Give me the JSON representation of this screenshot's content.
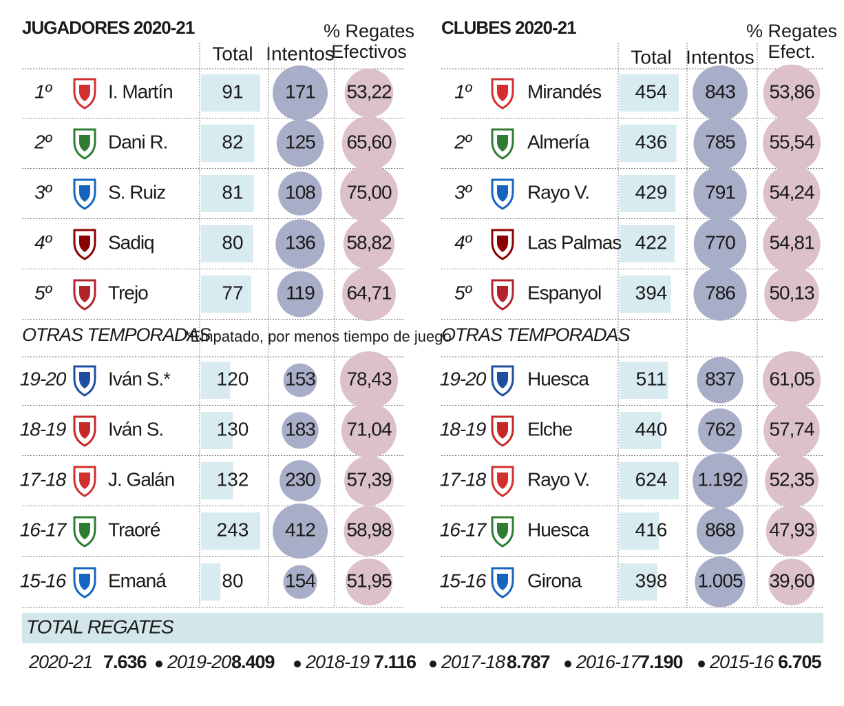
{
  "left": {
    "title": "JUGADORES 2020-21",
    "headers": [
      "Total",
      "Intentos",
      "% Regates",
      "Efectivos"
    ],
    "rows": [
      [
        "1º",
        "I. Martín",
        "91",
        "171",
        "53,22"
      ],
      [
        "2º",
        "Dani R.",
        "82",
        "125",
        "65,60"
      ],
      [
        "3º",
        "S. Ruiz",
        "81",
        "108",
        "75,00"
      ],
      [
        "4º",
        "Sadiq",
        "80",
        "136",
        "58,82"
      ],
      [
        "5º",
        "Trejo",
        "77",
        "119",
        "64,71"
      ]
    ],
    "other_title": "OTRAS TEMPORADAS",
    "note": "*Empatado, por menos tiempo de juego",
    "other_rows": [
      [
        "19-20",
        "Iván S.*",
        "120",
        "153",
        "78,43"
      ],
      [
        "18-19",
        "Iván S.",
        "130",
        "183",
        "71,04"
      ],
      [
        "17-18",
        "J. Galán",
        "132",
        "230",
        "57,39"
      ],
      [
        "16-17",
        "Traoré",
        "243",
        "412",
        "58,98"
      ],
      [
        "15-16",
        "Emaná",
        "80",
        "154",
        "51,95"
      ]
    ]
  },
  "right": {
    "title": "CLUBES 2020-21",
    "headers": [
      "Total",
      "Intentos",
      "% Regates",
      "Efect."
    ],
    "rows": [
      [
        "1º",
        "Mirandés",
        "454",
        "843",
        "53,86"
      ],
      [
        "2º",
        "Almería",
        "436",
        "785",
        "55,54"
      ],
      [
        "3º",
        "Rayo V.",
        "429",
        "791",
        "54,24"
      ],
      [
        "4º",
        "Las Palmas",
        "422",
        "770",
        "54,81"
      ],
      [
        "5º",
        "Espanyol",
        "394",
        "786",
        "50,13"
      ]
    ],
    "other_title": "OTRAS TEMPORADAS",
    "other_rows": [
      [
        "19-20",
        "Huesca",
        "511",
        "837",
        "61,05"
      ],
      [
        "18-19",
        "Elche",
        "440",
        "762",
        "57,74"
      ],
      [
        "17-18",
        "Rayo V.",
        "624",
        "1.192",
        "52,35"
      ],
      [
        "16-17",
        "Huesca",
        "416",
        "868",
        "47,93"
      ],
      [
        "15-16",
        "Girona",
        "398",
        "1.005",
        "39,60"
      ]
    ]
  },
  "totals": {
    "title": "TOTAL REGATES",
    "items": [
      [
        "2020-21",
        "7.636"
      ],
      [
        "2019-20",
        "8.409"
      ],
      [
        "2018-19",
        "7.116"
      ],
      [
        "2017-18",
        "8.787"
      ],
      [
        "2016-17",
        "7.190"
      ],
      [
        "2015-16",
        "6.705"
      ]
    ]
  }
}
